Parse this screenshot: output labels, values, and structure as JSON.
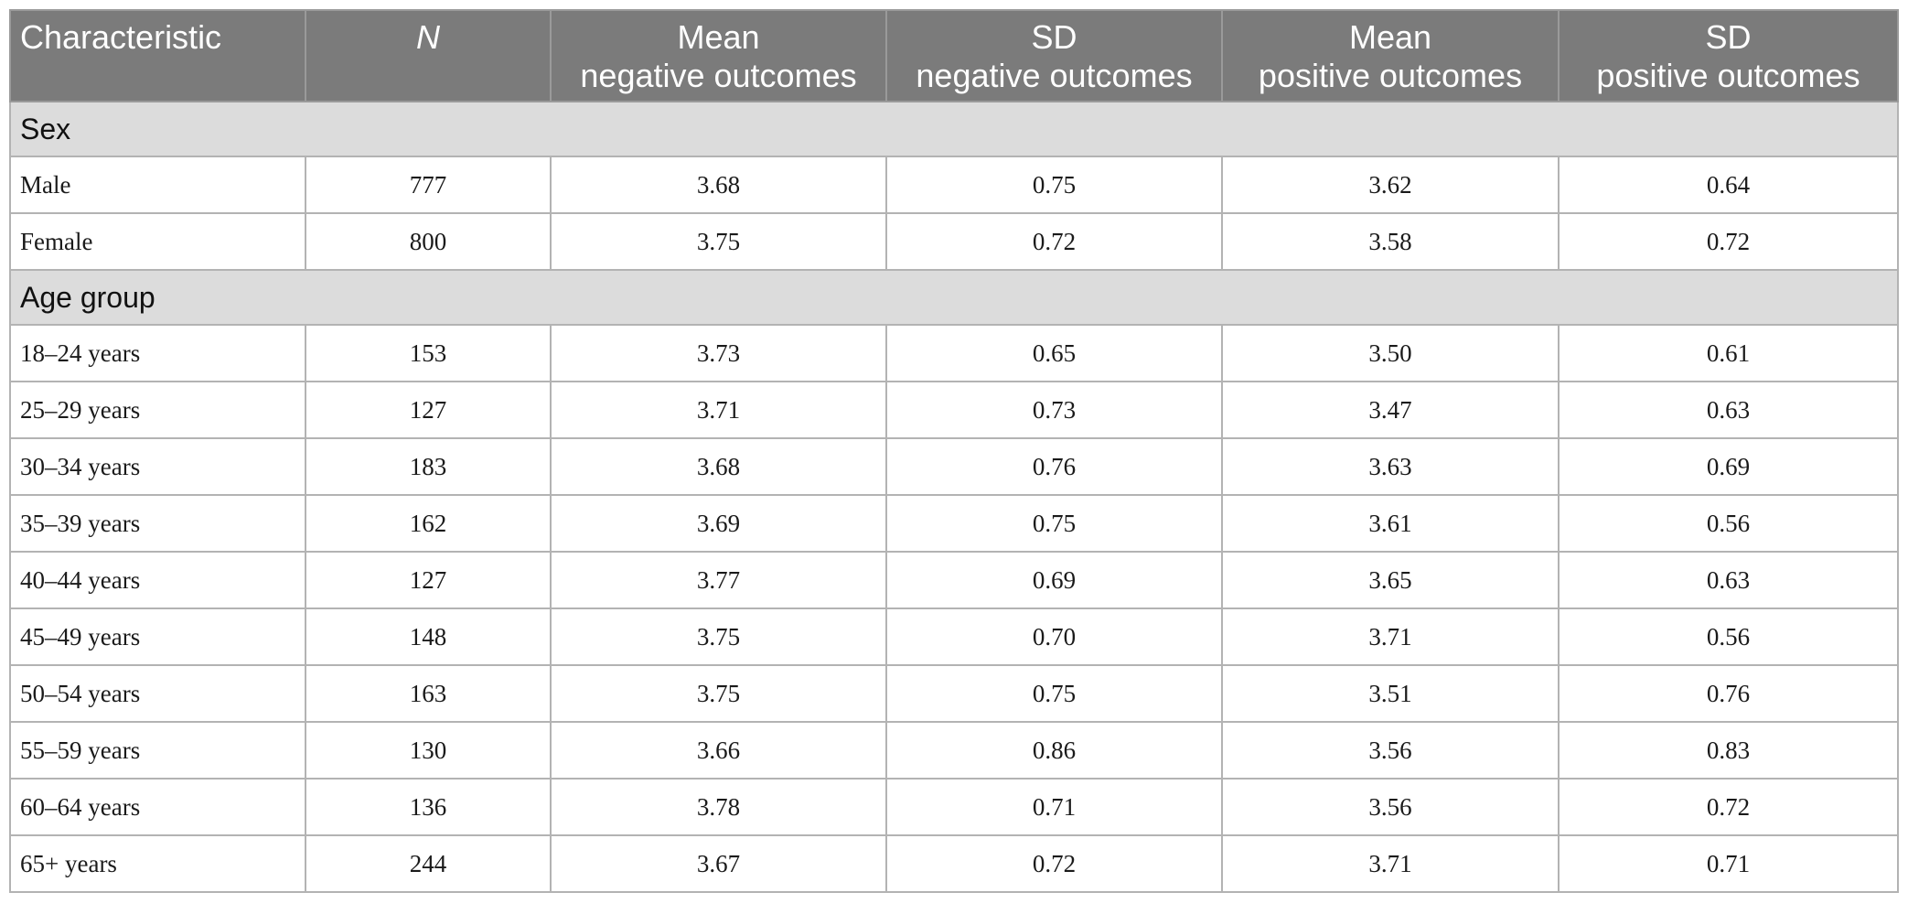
{
  "table": {
    "headers": [
      {
        "lines": [
          "Characteristic"
        ]
      },
      {
        "lines": [
          "N"
        ]
      },
      {
        "lines": [
          "Mean",
          "negative outcomes"
        ]
      },
      {
        "lines": [
          "SD",
          "negative outcomes"
        ]
      },
      {
        "lines": [
          "Mean",
          "positive outcomes"
        ]
      },
      {
        "lines": [
          "SD",
          "positive outcomes"
        ]
      }
    ],
    "sections": [
      {
        "title": "Sex",
        "rows": [
          [
            "Male",
            "777",
            "3.68",
            "0.75",
            "3.62",
            "0.64"
          ],
          [
            "Female",
            "800",
            "3.75",
            "0.72",
            "3.58",
            "0.72"
          ]
        ]
      },
      {
        "title": "Age group",
        "rows": [
          [
            "18–24 years",
            "153",
            "3.73",
            "0.65",
            "3.50",
            "0.61"
          ],
          [
            "25–29 years",
            "127",
            "3.71",
            "0.73",
            "3.47",
            "0.63"
          ],
          [
            "30–34 years",
            "183",
            "3.68",
            "0.76",
            "3.63",
            "0.69"
          ],
          [
            "35–39 years",
            "162",
            "3.69",
            "0.75",
            "3.61",
            "0.56"
          ],
          [
            "40–44 years",
            "127",
            "3.77",
            "0.69",
            "3.65",
            "0.63"
          ],
          [
            "45–49 years",
            "148",
            "3.75",
            "0.70",
            "3.71",
            "0.56"
          ],
          [
            "50–54 years",
            "163",
            "3.75",
            "0.75",
            "3.51",
            "0.76"
          ],
          [
            "55–59 years",
            "130",
            "3.66",
            "0.86",
            "3.56",
            "0.83"
          ],
          [
            "60–64 years",
            "136",
            "3.78",
            "0.71",
            "3.56",
            "0.72"
          ],
          [
            "65+ years",
            "244",
            "3.67",
            "0.72",
            "3.71",
            "0.71"
          ]
        ]
      }
    ]
  },
  "colors": {
    "header_bg": "#7b7b7b",
    "section_bg": "#dcdcdc",
    "border": "#b3b3b3"
  }
}
